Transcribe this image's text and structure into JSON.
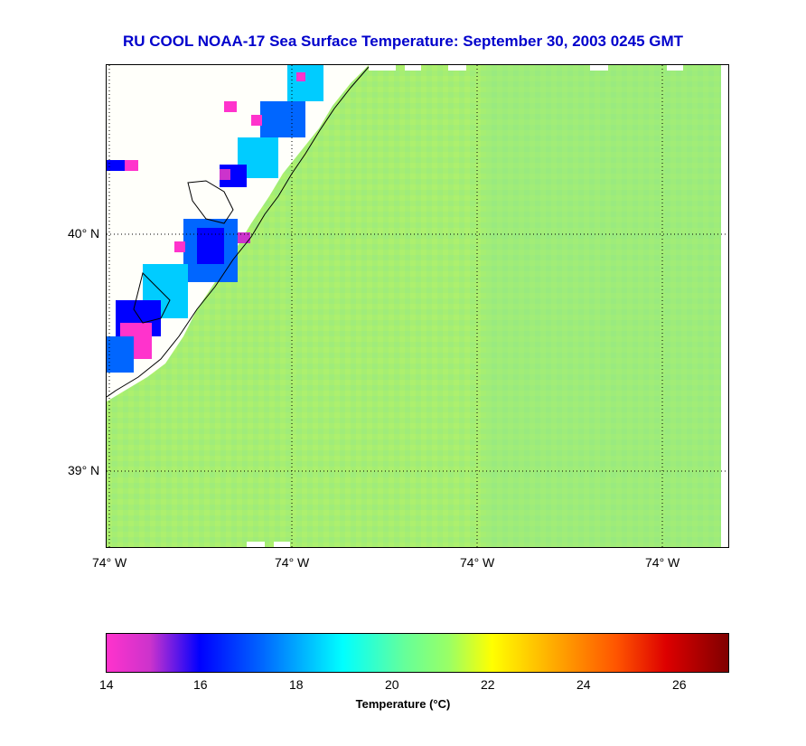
{
  "title": "RU COOL  NOAA-17  Sea Surface Temperature:  September 30, 2003 0245 GMT",
  "map": {
    "lat_labels": [
      "40° N",
      "39° N"
    ],
    "lon_labels": [
      "74° W",
      "74° W",
      "74° W",
      "74° W"
    ],
    "ocean_color": "#a9f070",
    "land_color": "#fffffa",
    "coastal_colors": [
      "#ff33cc",
      "#0000ff",
      "#0066ff",
      "#00ccff",
      "#33ffee"
    ]
  },
  "colorbar": {
    "ticks": [
      "14",
      "16",
      "18",
      "20",
      "22",
      "24",
      "26"
    ],
    "range": [
      14,
      27
    ],
    "label": "Temperature (°C)"
  }
}
